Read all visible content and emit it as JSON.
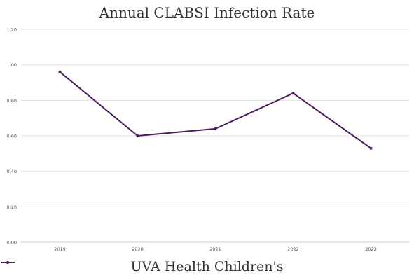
{
  "chart_data": {
    "type": "line",
    "title": "Annual CLABSI Infection Rate",
    "categories": [
      "2019",
      "2020",
      "2021",
      "2022",
      "2023"
    ],
    "series": [
      {
        "name": "UVA Health Children's",
        "values": [
          0.96,
          0.6,
          0.64,
          0.84,
          0.53
        ],
        "color": "#4b1a5c"
      }
    ],
    "yticks": [
      "0.00",
      "0.20",
      "0.40",
      "0.60",
      "0.80",
      "1.00",
      "1.20"
    ],
    "ylim": [
      0,
      1.2
    ],
    "grid": true,
    "legend": "bottom"
  }
}
